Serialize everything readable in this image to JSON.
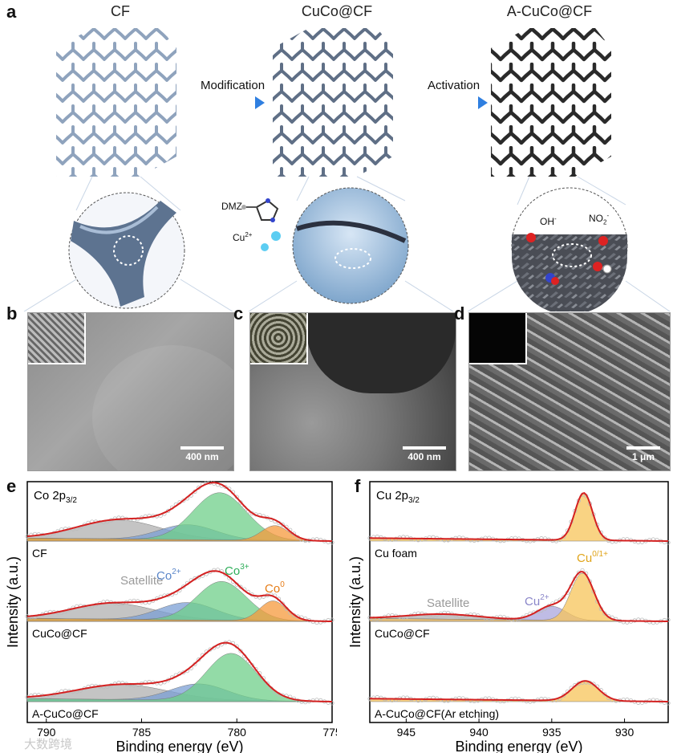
{
  "panel_a": {
    "label": "a",
    "materials": [
      "CF",
      "CuCo@CF",
      "A-CuCo@CF"
    ],
    "arrow1": "Modification",
    "arrow2": "Activation",
    "dmz": "DMZ",
    "cu_ion": "Cu",
    "cu_sup": "2+",
    "oh": "OH",
    "oh_sup": "-",
    "no2": "NO",
    "no2_sub": "2",
    "no2_sup": "-"
  },
  "panel_b": {
    "label": "b",
    "scale": "400 nm"
  },
  "panel_c": {
    "label": "c",
    "scale": "400 nm"
  },
  "panel_d": {
    "label": "d",
    "scale": "1 μm"
  },
  "watermark": "大数跨境",
  "chart_data": [
    {
      "label": "e",
      "type": "line",
      "title_main": "Co 2p",
      "title_sub": "3/2",
      "xlabel": "Binding energy (eV)",
      "ylabel": "Intensity (a.u.)",
      "xlim": [
        791,
        775
      ],
      "xticks": [
        790,
        785,
        780,
        775
      ],
      "series": [
        {
          "name": "CF",
          "peaks": [
            {
              "label": "Satellite",
              "center": 786.2,
              "height": 0.38,
              "width": 2.2,
              "color": "#b0b0b0"
            },
            {
              "label": "Co2+",
              "center": 782.6,
              "height": 0.3,
              "width": 1.5,
              "color": "#7b9fd4"
            },
            {
              "label": "Co3+",
              "center": 780.9,
              "height": 0.95,
              "width": 1.4,
              "color": "#6fcf8a"
            },
            {
              "label": "Co0",
              "center": 778.0,
              "height": 0.3,
              "width": 0.7,
              "color": "#f59a3c"
            }
          ]
        },
        {
          "name": "CuCo@CF",
          "peaks": [
            {
              "label": "Satellite",
              "center": 786.5,
              "height": 0.32,
              "width": 2.2,
              "color": "#b0b0b0"
            },
            {
              "label": "Co2+",
              "center": 782.6,
              "height": 0.35,
              "width": 1.5,
              "color": "#7b9fd4"
            },
            {
              "label": "Co3+",
              "center": 780.8,
              "height": 0.78,
              "width": 1.3,
              "color": "#6fcf8a"
            },
            {
              "label": "Co0",
              "center": 778.1,
              "height": 0.4,
              "width": 0.7,
              "color": "#f59a3c"
            }
          ]
        },
        {
          "name": "A-CuCo@CF",
          "peaks": [
            {
              "label": "Satellite",
              "center": 786.0,
              "height": 0.3,
              "width": 2.4,
              "color": "#b0b0b0"
            },
            {
              "label": "Co2+",
              "center": 782.0,
              "height": 0.33,
              "width": 1.5,
              "color": "#7b9fd4"
            },
            {
              "label": "Co3+",
              "center": 780.3,
              "height": 0.95,
              "width": 1.3,
              "color": "#6fcf8a"
            }
          ]
        }
      ],
      "annotations": [
        {
          "text": "Satellite",
          "color": "#9a9a9a"
        },
        {
          "text": "Co",
          "sup": "2+",
          "color": "#5b86c9"
        },
        {
          "text": "Co",
          "sup": "3+",
          "color": "#2fae5a"
        },
        {
          "text": "Co",
          "sup": "0",
          "color": "#e67c16"
        }
      ]
    },
    {
      "label": "f",
      "type": "line",
      "title_main": "Cu 2p",
      "title_sub": "3/2",
      "xlabel": "Binding energy (eV)",
      "ylabel": "Intensity (a.u.)",
      "xlim": [
        947.5,
        927
      ],
      "xticks": [
        945,
        940,
        935,
        930
      ],
      "series": [
        {
          "name": "Cu foam",
          "peaks": [
            {
              "label": "Cu0/1+",
              "center": 932.8,
              "height": 0.95,
              "width": 0.6,
              "color": "#f7c45a"
            }
          ]
        },
        {
          "name": "CuCo@CF",
          "peaks": [
            {
              "label": "Satellite",
              "center": 942.5,
              "height": 0.1,
              "width": 2.5,
              "color": "#b0b0b0"
            },
            {
              "label": "Cu2+",
              "center": 935.0,
              "height": 0.28,
              "width": 1.0,
              "color": "#a9a6dc"
            },
            {
              "label": "Cu0/1+",
              "center": 932.9,
              "height": 0.95,
              "width": 0.8,
              "color": "#f7c45a"
            }
          ]
        },
        {
          "name": "A-CuCo@CF(Ar etching)",
          "peaks": [
            {
              "label": "Cu0/1+",
              "center": 932.7,
              "height": 0.4,
              "width": 0.9,
              "color": "#f7c45a"
            }
          ]
        }
      ],
      "annotations": [
        {
          "text": "Satellite",
          "color": "#9a9a9a"
        },
        {
          "text": "Cu",
          "sup": "2+",
          "color": "#8a86c9"
        },
        {
          "text": "Cu",
          "sup": "0/1+",
          "color": "#e0a41a"
        }
      ]
    }
  ]
}
